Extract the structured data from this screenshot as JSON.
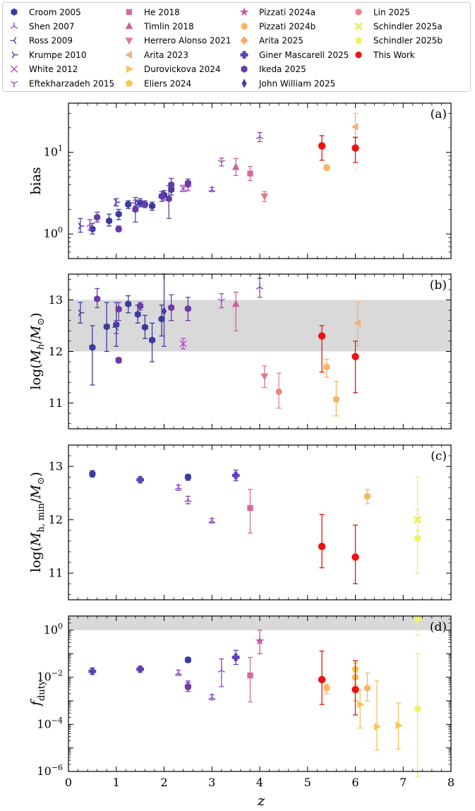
{
  "legend": {
    "entries": [
      {
        "label": "Croom 2005",
        "color": "#3b3b9e",
        "marker": "hexagon"
      },
      {
        "label": "Shen 2007",
        "color": "#8b45c4",
        "marker": "tri_up"
      },
      {
        "label": "Ross 2009",
        "color": "#5a3cae",
        "marker": "tri_left"
      },
      {
        "label": "Krumpe 2010",
        "color": "#4a3aa8",
        "marker": "tri_right"
      },
      {
        "label": "White 2012",
        "color": "#b14cc6",
        "marker": "x"
      },
      {
        "label": "Eftekharzadeh 2015",
        "color": "#a64cc2",
        "marker": "tri_down"
      },
      {
        "label": "He 2018",
        "color": "#d66a9c",
        "marker": "square"
      },
      {
        "label": "Timlin 2018",
        "color": "#cf5f9e",
        "marker": "triangle_up"
      },
      {
        "label": "Herrero Alonso 2021",
        "color": "#e07a88",
        "marker": "triangle_down"
      },
      {
        "label": "Arita 2023",
        "color": "#f2b07a",
        "marker": "triangle_left"
      },
      {
        "label": "Durovickova 2024",
        "color": "#f7c35a",
        "marker": "triangle_right"
      },
      {
        "label": "Eliers 2024",
        "color": "#f9c550",
        "marker": "pentagon"
      },
      {
        "label": "Pizzati 2024a",
        "color": "#c457a8",
        "marker": "star"
      },
      {
        "label": "Pizzati 2024b",
        "color": "#f8b560",
        "marker": "hexagon"
      },
      {
        "label": "Arita 2025",
        "color": "#f7a96c",
        "marker": "diamond"
      },
      {
        "label": "Giner Mascarell 2025",
        "color": "#5b3fb8",
        "marker": "plus"
      },
      {
        "label": "Ikeda 2025",
        "color": "#6a3aa8",
        "marker": "hexagon"
      },
      {
        "label": "John William 2025",
        "color": "#4b3aa8",
        "marker": "thin_diamond"
      },
      {
        "label": "Lin 2025",
        "color": "#e8868c",
        "marker": "circle"
      },
      {
        "label": "Schindler 2025a",
        "color": "#ecf05a",
        "marker": "x_filled"
      },
      {
        "label": "Schindler 2025b",
        "color": "#eff25a",
        "marker": "circle"
      },
      {
        "label": "This Work",
        "color": "#ee1111",
        "marker": "circle"
      }
    ]
  },
  "chart_data": [
    {
      "type": "scatter",
      "panel_label": "(a)",
      "ylabel": "bias",
      "xlim": [
        0,
        8
      ],
      "ylim": [
        0.5,
        40
      ],
      "yscale": "log",
      "ytick_labels": [
        "10^0",
        "10^1"
      ],
      "points": [
        {
          "s": 0,
          "x": 0.5,
          "y": 1.15,
          "lo": 1.0,
          "hi": 1.35
        },
        {
          "s": 0,
          "x": 0.85,
          "y": 1.45,
          "lo": 1.25,
          "hi": 1.75
        },
        {
          "s": 0,
          "x": 1.05,
          "y": 1.75,
          "lo": 1.5,
          "hi": 2.0
        },
        {
          "s": 0,
          "x": 1.25,
          "y": 2.3,
          "lo": 2.05,
          "hi": 2.55
        },
        {
          "s": 0,
          "x": 1.5,
          "y": 2.4,
          "lo": 2.15,
          "hi": 2.7
        },
        {
          "s": 0,
          "x": 1.75,
          "y": 2.2,
          "lo": 1.95,
          "hi": 2.45
        },
        {
          "s": 0,
          "x": 2.0,
          "y": 3.0,
          "lo": 2.6,
          "hi": 3.4
        },
        {
          "s": 0,
          "x": 2.15,
          "y": 3.5,
          "lo": 3.0,
          "hi": 4.0
        },
        {
          "s": 1,
          "x": 0.45,
          "y": 1.3,
          "lo": 1.12,
          "hi": 1.5
        },
        {
          "s": 1,
          "x": 3.0,
          "y": 3.5,
          "lo": 3.3,
          "hi": 3.7
        },
        {
          "s": 1,
          "x": 4.0,
          "y": 15.5,
          "lo": 13.5,
          "hi": 17.5
        },
        {
          "s": 2,
          "x": 1.4,
          "y": 2.4,
          "lo": 2.2,
          "hi": 2.6
        },
        {
          "s": 3,
          "x": 0.25,
          "y": 1.25,
          "lo": 1.05,
          "hi": 1.55
        },
        {
          "s": 3,
          "x": 1.0,
          "y": 2.45,
          "lo": 2.2,
          "hi": 2.7
        },
        {
          "s": 4,
          "x": 2.4,
          "y": 3.6,
          "lo": 3.3,
          "hi": 3.95
        },
        {
          "s": 5,
          "x": 2.5,
          "y": 3.7,
          "lo": 3.4,
          "hi": 4.0
        },
        {
          "s": 5,
          "x": 3.2,
          "y": 7.6,
          "lo": 6.8,
          "hi": 8.5
        },
        {
          "s": 6,
          "x": 3.8,
          "y": 5.5,
          "lo": 4.5,
          "hi": 6.7
        },
        {
          "s": 7,
          "x": 3.5,
          "y": 6.6,
          "lo": 5.2,
          "hi": 8.4
        },
        {
          "s": 8,
          "x": 4.1,
          "y": 2.9,
          "lo": 2.5,
          "hi": 3.3
        },
        {
          "s": 9,
          "x": 6.0,
          "y": 20.5,
          "lo": 15.0,
          "hi": 30.0
        },
        {
          "s": 13,
          "x": 5.4,
          "y": 6.5,
          "lo": 6.0,
          "hi": 7.0
        },
        {
          "s": 16,
          "x": 0.6,
          "y": 1.6,
          "lo": 1.4,
          "hi": 1.85
        },
        {
          "s": 16,
          "x": 1.05,
          "y": 1.15,
          "lo": 1.07,
          "hi": 1.25
        },
        {
          "s": 16,
          "x": 1.4,
          "y": 2.0,
          "lo": 1.4,
          "hi": 2.8
        },
        {
          "s": 16,
          "x": 1.95,
          "y": 2.9,
          "lo": 2.5,
          "hi": 3.3
        },
        {
          "s": 16,
          "x": 2.1,
          "y": 2.7,
          "lo": 1.55,
          "hi": 3.9
        },
        {
          "s": 16,
          "x": 2.15,
          "y": 4.0,
          "lo": 3.4,
          "hi": 4.8
        },
        {
          "s": 16,
          "x": 2.5,
          "y": 4.2,
          "lo": 3.8,
          "hi": 4.7
        },
        {
          "s": 16,
          "x": 1.6,
          "y": 2.3,
          "lo": 2.1,
          "hi": 2.55
        },
        {
          "s": 21,
          "x": 5.3,
          "y": 12.0,
          "lo": 8.0,
          "hi": 16.0
        },
        {
          "s": 21,
          "x": 6.0,
          "y": 11.3,
          "lo": 7.5,
          "hi": 15.3
        }
      ]
    },
    {
      "type": "scatter",
      "panel_label": "(b)",
      "ylabel": "log(M_h/M_⊙)",
      "xlim": [
        0,
        8
      ],
      "ylim": [
        10.5,
        13.5
      ],
      "yscale": "linear",
      "yticks": [
        11,
        12,
        13
      ],
      "shaded_band": [
        12,
        13
      ],
      "points": [
        {
          "s": 0,
          "x": 0.5,
          "y": 12.08,
          "lo": 11.35,
          "hi": 12.5
        },
        {
          "s": 0,
          "x": 0.8,
          "y": 12.48,
          "lo": 12.0,
          "hi": 12.95
        },
        {
          "s": 0,
          "x": 1.0,
          "y": 12.52,
          "lo": 12.1,
          "hi": 12.95
        },
        {
          "s": 0,
          "x": 1.25,
          "y": 12.92,
          "lo": 12.75,
          "hi": 13.08
        },
        {
          "s": 0,
          "x": 1.45,
          "y": 12.72,
          "lo": 12.55,
          "hi": 12.9
        },
        {
          "s": 0,
          "x": 1.6,
          "y": 12.47,
          "lo": 12.25,
          "hi": 12.7
        },
        {
          "s": 0,
          "x": 1.75,
          "y": 12.22,
          "lo": 11.8,
          "hi": 12.55
        },
        {
          "s": 0,
          "x": 1.95,
          "y": 12.63,
          "lo": 12.3,
          "hi": 12.9
        },
        {
          "s": 1,
          "x": 4.0,
          "y": 13.25,
          "lo": 13.05,
          "hi": 13.42
        },
        {
          "s": 2,
          "x": 1.0,
          "y": 12.47,
          "lo": 12.35,
          "hi": 12.6
        },
        {
          "s": 3,
          "x": 0.25,
          "y": 12.75,
          "lo": 12.55,
          "hi": 12.95
        },
        {
          "s": 4,
          "x": 2.4,
          "y": 12.15,
          "lo": 12.05,
          "hi": 12.25
        },
        {
          "s": 5,
          "x": 3.2,
          "y": 12.98,
          "lo": 12.85,
          "hi": 13.12
        },
        {
          "s": 7,
          "x": 3.5,
          "y": 12.92,
          "lo": 12.4,
          "hi": 13.15
        },
        {
          "s": 8,
          "x": 4.1,
          "y": 11.52,
          "lo": 11.3,
          "hi": 11.72
        },
        {
          "s": 9,
          "x": 6.05,
          "y": 12.55,
          "lo": 12.1,
          "hi": 12.95
        },
        {
          "s": 13,
          "x": 5.4,
          "y": 11.7,
          "lo": 11.5,
          "hi": 11.85
        },
        {
          "s": 13,
          "x": 5.6,
          "y": 11.07,
          "lo": 10.75,
          "hi": 11.42
        },
        {
          "s": 16,
          "x": 0.6,
          "y": 13.02,
          "lo": 12.85,
          "hi": 13.22
        },
        {
          "s": 16,
          "x": 1.05,
          "y": 11.83,
          "lo": 11.78,
          "hi": 11.88
        },
        {
          "s": 16,
          "x": 1.05,
          "y": 12.82,
          "lo": 12.6,
          "hi": 12.95
        },
        {
          "s": 16,
          "x": 1.5,
          "y": 12.88,
          "lo": 12.8,
          "hi": 12.95
        },
        {
          "s": 16,
          "x": 2.15,
          "y": 12.85,
          "lo": 12.6,
          "hi": 13.1
        },
        {
          "s": 16,
          "x": 2.5,
          "y": 12.83,
          "lo": 12.6,
          "hi": 13.05
        },
        {
          "s": 17,
          "x": 2.0,
          "y": 12.78,
          "lo": 12.1,
          "hi": 13.5
        },
        {
          "s": 18,
          "x": 4.4,
          "y": 11.22,
          "lo": 10.9,
          "hi": 11.58
        },
        {
          "s": 21,
          "x": 5.3,
          "y": 12.3,
          "lo": 11.6,
          "hi": 12.5
        },
        {
          "s": 21,
          "x": 6.0,
          "y": 11.9,
          "lo": 11.2,
          "hi": 12.2
        }
      ]
    },
    {
      "type": "scatter",
      "panel_label": "(c)",
      "ylabel": "log(M_h,min/M_⊙)",
      "xlim": [
        0,
        8
      ],
      "ylim": [
        10.5,
        13.4
      ],
      "yscale": "linear",
      "yticks": [
        11,
        12,
        13
      ],
      "points": [
        {
          "s": 0,
          "x": 0.5,
          "y": 12.86,
          "lo": 12.8,
          "hi": 12.92
        },
        {
          "s": 0,
          "x": 2.5,
          "y": 12.8,
          "lo": 12.74,
          "hi": 12.85
        },
        {
          "s": 15,
          "x": 1.5,
          "y": 12.75,
          "lo": 12.7,
          "hi": 12.8
        },
        {
          "s": 15,
          "x": 3.5,
          "y": 12.83,
          "lo": 12.73,
          "hi": 12.93
        },
        {
          "s": 1,
          "x": 2.3,
          "y": 12.6,
          "lo": 12.55,
          "hi": 12.65
        },
        {
          "s": 1,
          "x": 2.5,
          "y": 12.37,
          "lo": 12.3,
          "hi": 12.44
        },
        {
          "s": 1,
          "x": 3.0,
          "y": 11.98,
          "lo": 11.94,
          "hi": 12.02
        },
        {
          "s": 6,
          "x": 3.8,
          "y": 12.22,
          "lo": 11.75,
          "hi": 12.57
        },
        {
          "s": 13,
          "x": 6.25,
          "y": 12.44,
          "lo": 12.3,
          "hi": 12.57
        },
        {
          "s": 19,
          "x": 7.3,
          "y": 12.0,
          "lo": 11.8,
          "hi": 12.2
        },
        {
          "s": 20,
          "x": 7.3,
          "y": 11.65,
          "lo": 11.0,
          "hi": 12.8
        },
        {
          "s": 21,
          "x": 5.3,
          "y": 11.5,
          "lo": 11.1,
          "hi": 12.1
        },
        {
          "s": 21,
          "x": 6.0,
          "y": 11.3,
          "lo": 10.8,
          "hi": 11.9
        }
      ]
    },
    {
      "type": "scatter",
      "panel_label": "(d)",
      "ylabel": "f_duty",
      "xlabel": "z",
      "xlim": [
        0,
        8
      ],
      "xticks": [
        0,
        1,
        2,
        3,
        4,
        5,
        6,
        7,
        8
      ],
      "ylim": [
        1e-06,
        4
      ],
      "yscale": "log",
      "ytick_labels": [
        "10^-6",
        "10^-4",
        "10^-2",
        "10^0"
      ],
      "shaded_band": [
        1,
        4
      ],
      "points": [
        {
          "s": 15,
          "x": 0.5,
          "y": 0.018,
          "lo": 0.013,
          "hi": 0.025
        },
        {
          "s": 15,
          "x": 1.5,
          "y": 0.022,
          "lo": 0.017,
          "hi": 0.028
        },
        {
          "s": 15,
          "x": 3.5,
          "y": 0.07,
          "lo": 0.035,
          "hi": 0.14
        },
        {
          "s": 0,
          "x": 2.5,
          "y": 0.055,
          "lo": 0.043,
          "hi": 0.07
        },
        {
          "s": 1,
          "x": 2.3,
          "y": 0.015,
          "lo": 0.012,
          "hi": 0.02
        },
        {
          "s": 1,
          "x": 2.5,
          "y": 0.005,
          "lo": 0.003,
          "hi": 0.007
        },
        {
          "s": 1,
          "x": 3.0,
          "y": 0.0014,
          "lo": 0.0011,
          "hi": 0.0018
        },
        {
          "s": 1,
          "x": 3.2,
          "y": 0.02,
          "lo": 0.004,
          "hi": 0.06
        },
        {
          "s": 16,
          "x": 2.5,
          "y": 0.004,
          "lo": 0.0025,
          "hi": 0.006
        },
        {
          "s": 12,
          "x": 4.0,
          "y": 0.35,
          "lo": 0.1,
          "hi": 1.0
        },
        {
          "s": 6,
          "x": 3.8,
          "y": 0.012,
          "lo": 0.0009,
          "hi": 0.07
        },
        {
          "s": 13,
          "x": 5.4,
          "y": 0.0035,
          "lo": 0.002,
          "hi": 0.005
        },
        {
          "s": 13,
          "x": 6.0,
          "y": 0.01,
          "lo": 0.001,
          "hi": 0.04
        },
        {
          "s": 13,
          "x": 6.25,
          "y": 0.0035,
          "lo": 0.001,
          "hi": 0.015
        },
        {
          "s": 11,
          "x": 6.0,
          "y": 0.022,
          "lo": 0.005,
          "hi": 0.05
        },
        {
          "s": 10,
          "x": 6.1,
          "y": 0.0007,
          "lo": 7e-05,
          "hi": 0.003
        },
        {
          "s": 10,
          "x": 6.45,
          "y": 8e-05,
          "lo": 8e-06,
          "hi": 0.007
        },
        {
          "s": 10,
          "x": 6.9,
          "y": 9e-05,
          "lo": 9e-06,
          "hi": 0.0008
        },
        {
          "s": 20,
          "x": 7.3,
          "y": 0.00045,
          "lo": 6e-07,
          "hi": 0.1
        },
        {
          "s": 20,
          "x": 7.3,
          "y": 3.0,
          "lo": 0.6,
          "hi": 4.0
        },
        {
          "s": 21,
          "x": 5.3,
          "y": 0.008,
          "lo": 0.0007,
          "hi": 0.13
        },
        {
          "s": 21,
          "x": 6.0,
          "y": 0.003,
          "lo": 0.00025,
          "hi": 0.05
        }
      ]
    }
  ]
}
